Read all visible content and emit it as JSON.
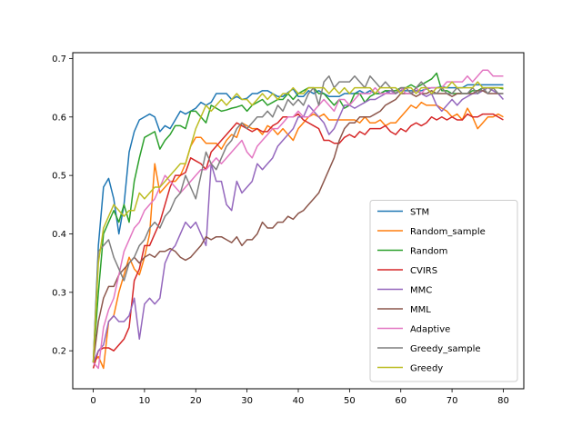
{
  "chart_data": {
    "type": "line",
    "title": "",
    "xlabel": "",
    "ylabel": "",
    "xlim": [
      -4,
      84
    ],
    "ylim": [
      0.135,
      0.71
    ],
    "xticks": [
      0,
      10,
      20,
      30,
      40,
      50,
      60,
      70,
      80
    ],
    "yticks": [
      0.2,
      0.3,
      0.4,
      0.5,
      0.6,
      0.7
    ],
    "grid": false,
    "legend_position": "lower-right",
    "x": [
      0,
      1,
      2,
      3,
      4,
      5,
      6,
      7,
      8,
      9,
      10,
      11,
      12,
      13,
      14,
      15,
      16,
      17,
      18,
      19,
      20,
      21,
      22,
      23,
      24,
      25,
      26,
      27,
      28,
      29,
      30,
      31,
      32,
      33,
      34,
      35,
      36,
      37,
      38,
      39,
      40,
      41,
      42,
      43,
      44,
      45,
      46,
      47,
      48,
      49,
      50,
      51,
      52,
      53,
      54,
      55,
      56,
      57,
      58,
      59,
      60,
      61,
      62,
      63,
      64,
      65,
      66,
      67,
      68,
      69,
      70,
      71,
      72,
      73,
      74,
      75,
      76,
      77,
      78,
      79,
      80
    ],
    "series": [
      {
        "name": "STM",
        "color": "#1f77b4",
        "values": [
          0.18,
          0.38,
          0.48,
          0.495,
          0.46,
          0.4,
          0.45,
          0.54,
          0.575,
          0.595,
          0.6,
          0.605,
          0.6,
          0.575,
          0.585,
          0.58,
          0.595,
          0.61,
          0.605,
          0.61,
          0.615,
          0.625,
          0.62,
          0.625,
          0.64,
          0.64,
          0.64,
          0.63,
          0.635,
          0.63,
          0.632,
          0.64,
          0.64,
          0.645,
          0.645,
          0.64,
          0.635,
          0.635,
          0.642,
          0.648,
          0.635,
          0.635,
          0.645,
          0.64,
          0.645,
          0.64,
          0.635,
          0.635,
          0.635,
          0.64,
          0.64,
          0.64,
          0.645,
          0.64,
          0.645,
          0.64,
          0.64,
          0.645,
          0.64,
          0.64,
          0.645,
          0.645,
          0.645,
          0.645,
          0.645,
          0.648,
          0.65,
          0.65,
          0.652,
          0.65,
          0.65,
          0.65,
          0.65,
          0.655,
          0.655,
          0.655,
          0.655,
          0.655,
          0.655,
          0.655,
          0.655
        ]
      },
      {
        "name": "Random_sample",
        "color": "#ff7f0e",
        "values": [
          0.18,
          0.19,
          0.17,
          0.25,
          0.26,
          0.3,
          0.33,
          0.36,
          0.34,
          0.33,
          0.36,
          0.4,
          0.52,
          0.47,
          0.48,
          0.49,
          0.49,
          0.5,
          0.52,
          0.55,
          0.565,
          0.565,
          0.555,
          0.555,
          0.555,
          0.545,
          0.56,
          0.57,
          0.565,
          0.59,
          0.585,
          0.58,
          0.58,
          0.57,
          0.585,
          0.58,
          0.57,
          0.58,
          0.57,
          0.56,
          0.58,
          0.59,
          0.6,
          0.605,
          0.6,
          0.605,
          0.595,
          0.595,
          0.595,
          0.595,
          0.595,
          0.595,
          0.59,
          0.6,
          0.59,
          0.59,
          0.595,
          0.585,
          0.59,
          0.59,
          0.6,
          0.61,
          0.62,
          0.615,
          0.625,
          0.62,
          0.62,
          0.62,
          0.615,
          0.61,
          0.6,
          0.605,
          0.595,
          0.615,
          0.6,
          0.58,
          0.59,
          0.6,
          0.6,
          0.605,
          0.6
        ]
      },
      {
        "name": "Random",
        "color": "#2ca02c",
        "values": [
          0.18,
          0.3,
          0.4,
          0.42,
          0.44,
          0.42,
          0.45,
          0.42,
          0.49,
          0.53,
          0.565,
          0.57,
          0.575,
          0.545,
          0.56,
          0.57,
          0.585,
          0.585,
          0.58,
          0.61,
          0.61,
          0.6,
          0.59,
          0.62,
          0.615,
          0.61,
          0.612,
          0.615,
          0.617,
          0.62,
          0.61,
          0.62,
          0.625,
          0.63,
          0.62,
          0.625,
          0.63,
          0.63,
          0.64,
          0.63,
          0.64,
          0.645,
          0.65,
          0.65,
          0.64,
          0.64,
          0.63,
          0.62,
          0.63,
          0.615,
          0.62,
          0.64,
          0.64,
          0.625,
          0.635,
          0.64,
          0.64,
          0.645,
          0.645,
          0.645,
          0.65,
          0.65,
          0.655,
          0.65,
          0.655,
          0.66,
          0.665,
          0.675,
          0.645,
          0.645,
          0.64,
          0.64,
          0.64,
          0.64,
          0.645,
          0.645,
          0.65,
          0.65,
          0.65,
          0.65,
          0.648
        ]
      },
      {
        "name": "CVIRS",
        "color": "#d62728",
        "values": [
          0.17,
          0.2,
          0.205,
          0.205,
          0.2,
          0.21,
          0.22,
          0.24,
          0.32,
          0.34,
          0.38,
          0.38,
          0.4,
          0.42,
          0.45,
          0.48,
          0.5,
          0.5,
          0.505,
          0.53,
          0.525,
          0.52,
          0.51,
          0.54,
          0.55,
          0.56,
          0.57,
          0.58,
          0.59,
          0.585,
          0.58,
          0.575,
          0.58,
          0.575,
          0.575,
          0.585,
          0.59,
          0.6,
          0.6,
          0.6,
          0.605,
          0.595,
          0.59,
          0.585,
          0.58,
          0.56,
          0.56,
          0.555,
          0.555,
          0.565,
          0.57,
          0.565,
          0.575,
          0.57,
          0.58,
          0.58,
          0.58,
          0.585,
          0.575,
          0.57,
          0.58,
          0.575,
          0.585,
          0.59,
          0.585,
          0.59,
          0.6,
          0.595,
          0.6,
          0.595,
          0.6,
          0.595,
          0.595,
          0.605,
          0.6,
          0.6,
          0.605,
          0.605,
          0.605,
          0.6,
          0.595
        ]
      },
      {
        "name": "MMC",
        "color": "#9467bd",
        "values": [
          0.18,
          0.2,
          0.21,
          0.25,
          0.26,
          0.25,
          0.25,
          0.26,
          0.29,
          0.22,
          0.28,
          0.29,
          0.28,
          0.29,
          0.35,
          0.37,
          0.38,
          0.4,
          0.42,
          0.41,
          0.42,
          0.4,
          0.38,
          0.52,
          0.49,
          0.49,
          0.45,
          0.44,
          0.49,
          0.47,
          0.48,
          0.49,
          0.52,
          0.51,
          0.52,
          0.53,
          0.55,
          0.56,
          0.57,
          0.58,
          0.6,
          0.6,
          0.62,
          0.61,
          0.6,
          0.59,
          0.57,
          0.58,
          0.6,
          0.62,
          0.62,
          0.615,
          0.62,
          0.625,
          0.63,
          0.63,
          0.635,
          0.64,
          0.645,
          0.64,
          0.645,
          0.65,
          0.64,
          0.645,
          0.64,
          0.635,
          0.64,
          0.62,
          0.61,
          0.62,
          0.63,
          0.62,
          0.63,
          0.635,
          0.64,
          0.64,
          0.645,
          0.65,
          0.645,
          0.64,
          0.63
        ]
      },
      {
        "name": "MML",
        "color": "#8c564b",
        "values": [
          0.18,
          0.25,
          0.29,
          0.31,
          0.31,
          0.33,
          0.34,
          0.35,
          0.36,
          0.35,
          0.36,
          0.365,
          0.36,
          0.37,
          0.37,
          0.375,
          0.37,
          0.36,
          0.355,
          0.36,
          0.37,
          0.38,
          0.395,
          0.39,
          0.395,
          0.395,
          0.39,
          0.385,
          0.395,
          0.38,
          0.39,
          0.39,
          0.4,
          0.42,
          0.41,
          0.41,
          0.42,
          0.42,
          0.43,
          0.425,
          0.435,
          0.44,
          0.45,
          0.46,
          0.47,
          0.49,
          0.51,
          0.53,
          0.56,
          0.58,
          0.59,
          0.59,
          0.6,
          0.6,
          0.6,
          0.605,
          0.61,
          0.62,
          0.625,
          0.63,
          0.64,
          0.64,
          0.64,
          0.635,
          0.64,
          0.64,
          0.645,
          0.64,
          0.64,
          0.64,
          0.635,
          0.64,
          0.64,
          0.64,
          0.64,
          0.645,
          0.645,
          0.64,
          0.64,
          0.64,
          0.64
        ]
      },
      {
        "name": "Adaptive",
        "color": "#e377c2",
        "values": [
          0.18,
          0.17,
          0.24,
          0.27,
          0.29,
          0.33,
          0.37,
          0.39,
          0.41,
          0.42,
          0.44,
          0.45,
          0.46,
          0.48,
          0.5,
          0.49,
          0.48,
          0.47,
          0.48,
          0.49,
          0.5,
          0.51,
          0.51,
          0.52,
          0.53,
          0.52,
          0.53,
          0.54,
          0.55,
          0.56,
          0.54,
          0.53,
          0.55,
          0.56,
          0.57,
          0.58,
          0.58,
          0.59,
          0.6,
          0.6,
          0.61,
          0.6,
          0.6,
          0.61,
          0.62,
          0.63,
          0.62,
          0.61,
          0.63,
          0.63,
          0.62,
          0.63,
          0.64,
          0.64,
          0.64,
          0.65,
          0.64,
          0.64,
          0.64,
          0.64,
          0.65,
          0.64,
          0.64,
          0.65,
          0.64,
          0.65,
          0.65,
          0.65,
          0.65,
          0.66,
          0.66,
          0.66,
          0.66,
          0.67,
          0.66,
          0.67,
          0.68,
          0.68,
          0.67,
          0.67,
          0.67
        ]
      },
      {
        "name": "Greedy_sample",
        "color": "#7f7f7f",
        "values": [
          0.18,
          0.37,
          0.38,
          0.39,
          0.36,
          0.34,
          0.32,
          0.35,
          0.36,
          0.38,
          0.39,
          0.41,
          0.42,
          0.41,
          0.43,
          0.44,
          0.46,
          0.47,
          0.5,
          0.48,
          0.46,
          0.5,
          0.54,
          0.52,
          0.51,
          0.53,
          0.55,
          0.56,
          0.58,
          0.59,
          0.58,
          0.59,
          0.6,
          0.6,
          0.61,
          0.6,
          0.62,
          0.61,
          0.63,
          0.62,
          0.63,
          0.62,
          0.64,
          0.65,
          0.62,
          0.66,
          0.67,
          0.65,
          0.66,
          0.66,
          0.66,
          0.67,
          0.66,
          0.65,
          0.67,
          0.66,
          0.65,
          0.66,
          0.65,
          0.64,
          0.65,
          0.65,
          0.64,
          0.65,
          0.66,
          0.65,
          0.64,
          0.64,
          0.65,
          0.64,
          0.64,
          0.65,
          0.64,
          0.64,
          0.65,
          0.64,
          0.65,
          0.64,
          0.65,
          0.64,
          0.64
        ]
      },
      {
        "name": "Greedy",
        "color": "#bcbd22",
        "values": [
          0.18,
          0.35,
          0.41,
          0.43,
          0.45,
          0.44,
          0.43,
          0.44,
          0.44,
          0.47,
          0.46,
          0.47,
          0.48,
          0.48,
          0.49,
          0.5,
          0.51,
          0.52,
          0.52,
          0.55,
          0.58,
          0.6,
          0.62,
          0.61,
          0.62,
          0.63,
          0.62,
          0.63,
          0.64,
          0.63,
          0.63,
          0.62,
          0.63,
          0.64,
          0.63,
          0.64,
          0.63,
          0.64,
          0.64,
          0.65,
          0.64,
          0.64,
          0.65,
          0.65,
          0.65,
          0.65,
          0.64,
          0.65,
          0.64,
          0.65,
          0.64,
          0.65,
          0.65,
          0.65,
          0.65,
          0.64,
          0.65,
          0.65,
          0.65,
          0.65,
          0.64,
          0.65,
          0.65,
          0.64,
          0.65,
          0.65,
          0.64,
          0.65,
          0.65,
          0.65,
          0.66,
          0.65,
          0.65,
          0.65,
          0.65,
          0.66,
          0.65,
          0.65,
          0.65,
          0.65,
          0.65
        ]
      }
    ]
  }
}
